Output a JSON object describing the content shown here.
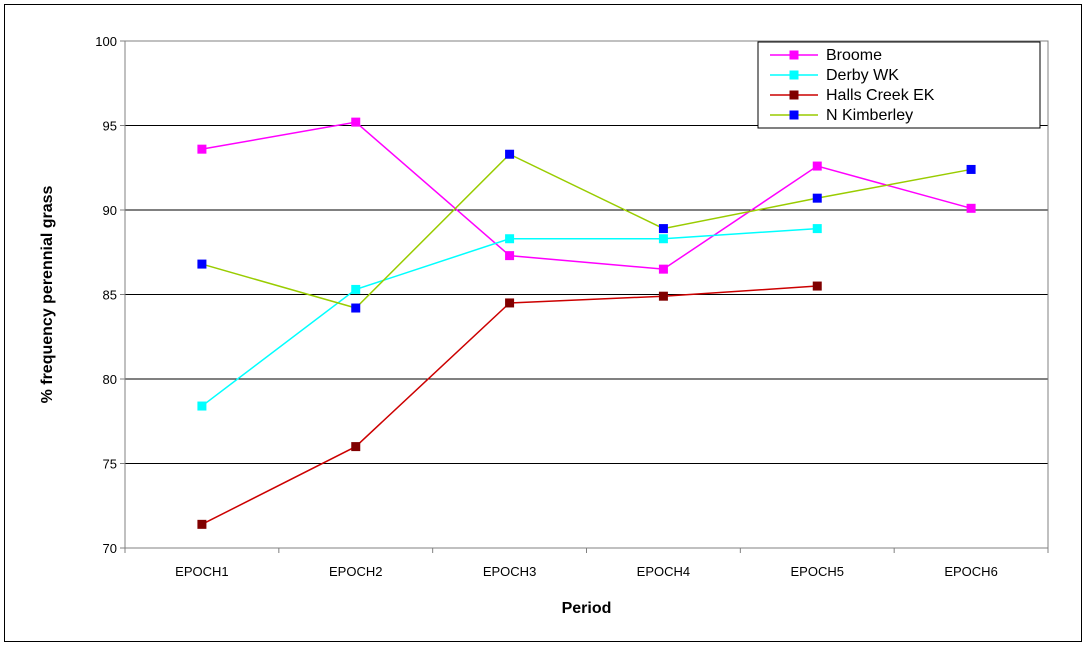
{
  "chart_data": {
    "type": "line",
    "title": "",
    "xlabel": "Period",
    "ylabel": "% frequency perennial grass",
    "categories": [
      "EPOCH1",
      "EPOCH2",
      "EPOCH3",
      "EPOCH4",
      "EPOCH5",
      "EPOCH6"
    ],
    "ylim": [
      70,
      100
    ],
    "yticks": [
      70,
      75,
      80,
      85,
      90,
      95,
      100
    ],
    "grid": true,
    "legend_position": "top-right",
    "series": [
      {
        "name": "Broome",
        "line_color": "#ff00ff",
        "marker_color": "#ff00ff",
        "values": [
          93.6,
          95.2,
          87.3,
          86.5,
          92.6,
          90.1
        ]
      },
      {
        "name": "Derby WK",
        "line_color": "#00ffff",
        "marker_color": "#00ffff",
        "values": [
          78.4,
          85.3,
          88.3,
          88.3,
          88.9,
          null
        ]
      },
      {
        "name": "Halls Creek EK",
        "line_color": "#cc0000",
        "marker_color": "#800000",
        "values": [
          71.4,
          76.0,
          84.5,
          84.9,
          85.5,
          null
        ]
      },
      {
        "name": "N Kimberley",
        "line_color": "#99cc00",
        "marker_color": "#0000ff",
        "values": [
          86.8,
          84.2,
          93.3,
          88.9,
          90.7,
          92.4
        ]
      }
    ]
  }
}
